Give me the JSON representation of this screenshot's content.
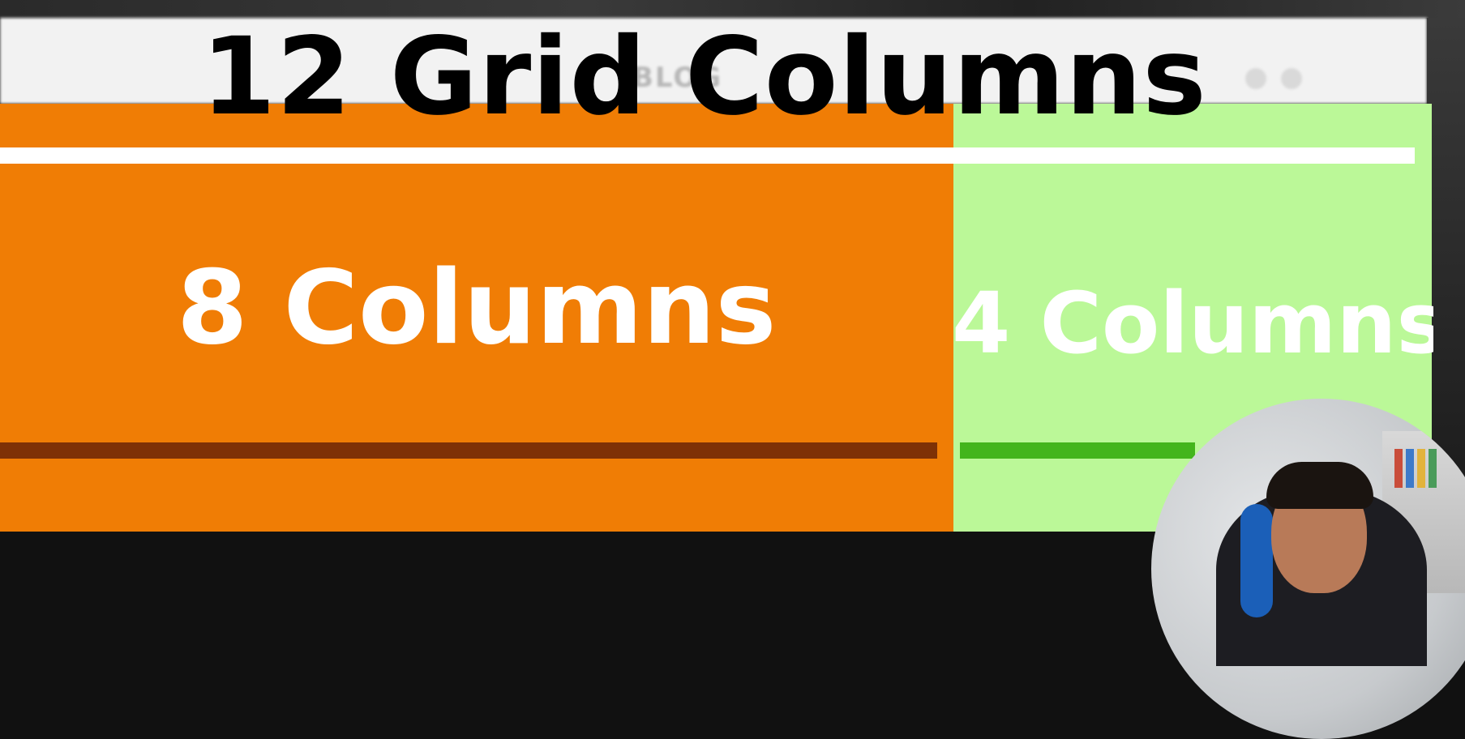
{
  "title": "12 Grid Columns",
  "columns": [
    {
      "label": "8 Columns",
      "color": "#f07d05",
      "underline_color": "#7e3106"
    },
    {
      "label": "4 Columns",
      "color": "#bbf898",
      "underline_color": "#43b51c"
    }
  ],
  "divider_color": "#ffffff",
  "title_color": "#000000",
  "label_color": "#ffffff"
}
